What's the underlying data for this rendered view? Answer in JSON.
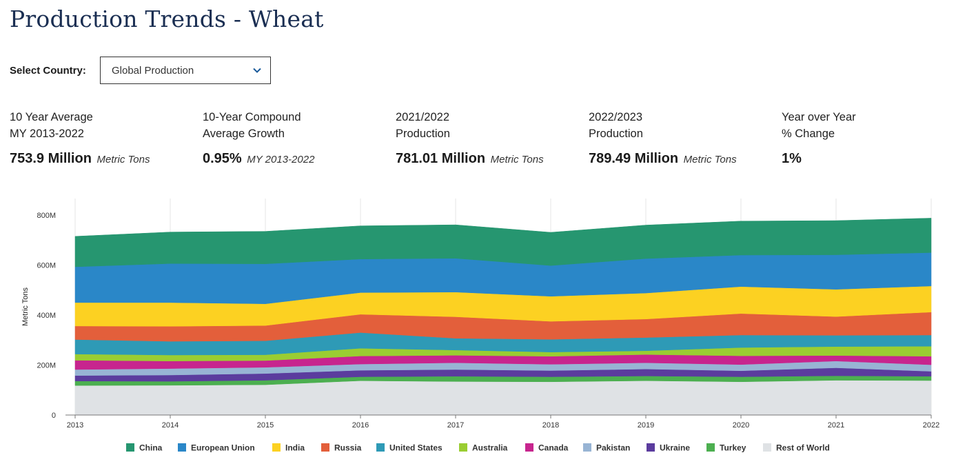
{
  "page": {
    "title": "Production Trends - Wheat",
    "selector": {
      "label": "Select Country:",
      "value": "Global Production"
    }
  },
  "stats": [
    {
      "line1": "10 Year Average",
      "line2": "MY 2013-2022",
      "value": "753.9 Million",
      "unit": "Metric Tons"
    },
    {
      "line1": "10-Year Compound",
      "line2": "Average Growth",
      "value": "0.95%",
      "unit": "MY 2013-2022"
    },
    {
      "line1": "2021/2022",
      "line2": "Production",
      "value": "781.01 Million",
      "unit": "Metric Tons"
    },
    {
      "line1": "2022/2023",
      "line2": "Production",
      "value": "789.49 Million",
      "unit": "Metric Tons"
    },
    {
      "line1": "Year over Year",
      "line2": "% Change",
      "value": "1%",
      "unit": ""
    }
  ],
  "chart_data": {
    "type": "area",
    "stacked": true,
    "title": "",
    "xlabel": "",
    "ylabel": "Metric Tons",
    "ylim": [
      0,
      800
    ],
    "yticks": [
      0,
      200,
      400,
      600,
      800
    ],
    "ytick_labels": [
      "0",
      "200M",
      "400M",
      "600M",
      "800M"
    ],
    "grid": "vertical",
    "legend_position": "bottom",
    "x": [
      "2013",
      "2014",
      "2015",
      "2016",
      "2017",
      "2018",
      "2019",
      "2020",
      "2021",
      "2022"
    ],
    "series": [
      {
        "name": "Rest of World",
        "color": "#dfe2e5",
        "values": [
          118,
          119,
          121,
          137,
          134,
          133,
          137,
          133,
          139,
          138
        ]
      },
      {
        "name": "Turkey",
        "color": "#4caf50",
        "values": [
          18,
          16,
          18,
          16,
          21,
          20,
          19,
          20,
          18,
          17
        ]
      },
      {
        "name": "Ukraine",
        "color": "#5b3c9e",
        "values": [
          22,
          25,
          27,
          26,
          27,
          25,
          28,
          24,
          32,
          20
        ]
      },
      {
        "name": "Pakistan",
        "color": "#98b4d4",
        "values": [
          24,
          26,
          25,
          25,
          27,
          25,
          25,
          25,
          27,
          26
        ]
      },
      {
        "name": "Canada",
        "color": "#c7258e",
        "values": [
          37,
          30,
          27,
          32,
          30,
          32,
          33,
          35,
          22,
          34
        ]
      },
      {
        "name": "Australia",
        "color": "#9acd32",
        "values": [
          25,
          24,
          23,
          31,
          21,
          17,
          15,
          33,
          36,
          40
        ]
      },
      {
        "name": "United States",
        "color": "#2e9ab6",
        "values": [
          58,
          55,
          56,
          63,
          47,
          51,
          53,
          50,
          45,
          45
        ]
      },
      {
        "name": "Russia",
        "color": "#e35f3b",
        "values": [
          54,
          60,
          61,
          73,
          86,
          72,
          74,
          86,
          75,
          92
        ]
      },
      {
        "name": "India",
        "color": "#fcd122",
        "values": [
          94,
          95,
          87,
          87,
          99,
          100,
          104,
          108,
          109,
          104
        ]
      },
      {
        "name": "European Union",
        "color": "#2a87c8",
        "values": [
          143,
          156,
          160,
          134,
          135,
          123,
          138,
          126,
          138,
          134
        ]
      },
      {
        "name": "China",
        "color": "#269670",
        "values": [
          122,
          126,
          130,
          133,
          134,
          133,
          134,
          136,
          137,
          138
        ]
      }
    ],
    "legend_order": [
      "China",
      "European Union",
      "India",
      "Russia",
      "United States",
      "Australia",
      "Canada",
      "Pakistan",
      "Ukraine",
      "Turkey",
      "Rest of World"
    ]
  }
}
